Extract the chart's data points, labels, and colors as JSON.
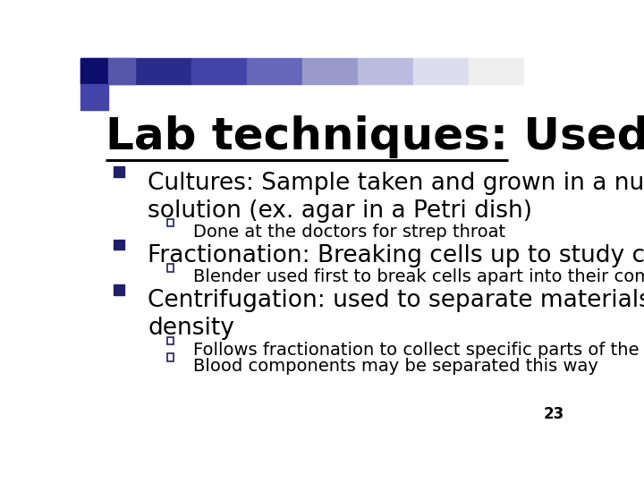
{
  "title_underlined": "Lab techniques:",
  "title_rest": " Used to study cells",
  "title_fontsize": 36,
  "title_color": "#000000",
  "title_underline_color": "#000000",
  "background_color": "#ffffff",
  "bullet_color": "#1F1F6B",
  "sub_bullet_color": "#1F1F6B",
  "bullet_fontsize": 19,
  "sub_bullet_fontsize": 14,
  "page_number": "23",
  "page_number_fontsize": 12,
  "bullets": [
    {
      "text": "Cultures: Sample taken and grown in a nutrient\nsolution (ex. agar in a Petri dish)",
      "sub": [
        "Done at the doctors for strep throat"
      ]
    },
    {
      "text": "Fractionation: Breaking cells up to study certain parts",
      "sub": [
        "Blender used first to break cells apart into their components"
      ]
    },
    {
      "text": "Centrifugation: used to separate materials based on\ndensity",
      "sub": [
        "Follows fractionation to collect specific parts of the cell",
        "Blood components may be separated this way"
      ]
    }
  ]
}
